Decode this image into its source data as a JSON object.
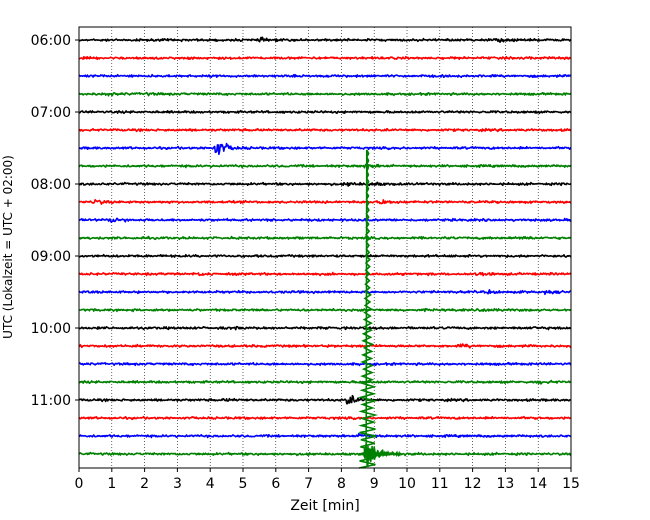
{
  "chart_data": {
    "type": "line",
    "xlabel": "Zeit  [min]",
    "ylabel": "UTC (Lokalzeit = UTC + 02:00)",
    "xlim": [
      0,
      15
    ],
    "x_ticks": [
      "0",
      "1",
      "2",
      "3",
      "4",
      "5",
      "6",
      "7",
      "8",
      "9",
      "10",
      "11",
      "12",
      "13",
      "14",
      "15"
    ],
    "y_tick_labels": [
      "06:00",
      "07:00",
      "08:00",
      "09:00",
      "10:00",
      "11:00"
    ],
    "grid": "vertical dotted",
    "trace_colors": [
      "#000000",
      "#ff0000",
      "#0000ff",
      "#008000"
    ],
    "traces": [
      {
        "start": "06:00",
        "color": "#000000",
        "events": [
          {
            "t": 5.5,
            "amp": 0.25
          },
          {
            "t": 12.8,
            "amp": 0.3
          }
        ]
      },
      {
        "start": "06:15",
        "color": "#ff0000",
        "events": []
      },
      {
        "start": "06:30",
        "color": "#0000ff",
        "events": []
      },
      {
        "start": "06:45",
        "color": "#008000",
        "events": [
          {
            "t": 0.8,
            "amp": 0.2
          },
          {
            "t": 2.0,
            "amp": 0.15
          }
        ]
      },
      {
        "start": "07:00",
        "color": "#000000",
        "events": []
      },
      {
        "start": "07:15",
        "color": "#ff0000",
        "events": []
      },
      {
        "start": "07:30",
        "color": "#0000ff",
        "events": [
          {
            "t": 4.2,
            "amp": 1.8
          }
        ]
      },
      {
        "start": "07:45",
        "color": "#008000",
        "events": [
          {
            "t": 8.75,
            "amp": 0.3
          }
        ]
      },
      {
        "start": "08:00",
        "color": "#000000",
        "events": [
          {
            "t": 8.2,
            "amp": 0.3
          },
          {
            "t": 8.9,
            "amp": 0.3
          }
        ]
      },
      {
        "start": "08:15",
        "color": "#ff0000",
        "events": [
          {
            "t": 0.5,
            "amp": 0.4
          },
          {
            "t": 9.2,
            "amp": 0.4
          }
        ]
      },
      {
        "start": "08:30",
        "color": "#0000ff",
        "events": [
          {
            "t": 1.0,
            "amp": 0.5
          }
        ]
      },
      {
        "start": "08:45",
        "color": "#008000",
        "events": [
          {
            "t": 13.5,
            "amp": 0.2
          }
        ]
      },
      {
        "start": "09:00",
        "color": "#000000",
        "events": []
      },
      {
        "start": "09:15",
        "color": "#ff0000",
        "events": [
          {
            "t": 3.7,
            "amp": 0.2
          },
          {
            "t": 12.2,
            "amp": 0.35
          }
        ]
      },
      {
        "start": "09:30",
        "color": "#0000ff",
        "events": [
          {
            "t": 12.5,
            "amp": 0.2
          },
          {
            "t": 14.2,
            "amp": 0.2
          }
        ]
      },
      {
        "start": "09:45",
        "color": "#008000",
        "events": [
          {
            "t": 12.3,
            "amp": 0.2
          }
        ]
      },
      {
        "start": "10:00",
        "color": "#000000",
        "events": [
          {
            "t": 4.7,
            "amp": 0.15
          },
          {
            "t": 13.8,
            "amp": 0.15
          }
        ]
      },
      {
        "start": "10:15",
        "color": "#ff0000",
        "events": [
          {
            "t": 11.7,
            "amp": 0.25
          }
        ]
      },
      {
        "start": "10:30",
        "color": "#0000ff",
        "events": []
      },
      {
        "start": "10:45",
        "color": "#008000",
        "events": [
          {
            "t": 14.0,
            "amp": 0.25
          }
        ]
      },
      {
        "start": "11:00",
        "color": "#000000",
        "events": [
          {
            "t": 8.2,
            "amp": 1.0
          },
          {
            "t": 4.5,
            "amp": 0.15
          }
        ]
      },
      {
        "start": "11:15",
        "color": "#ff0000",
        "events": []
      },
      {
        "start": "11:30",
        "color": "#0000ff",
        "events": [
          {
            "t": 8.6,
            "amp": 0.4
          }
        ]
      },
      {
        "start": "11:45",
        "color": "#008000",
        "events": [
          {
            "t": 8.8,
            "amp": 3.0
          }
        ]
      }
    ],
    "big_event": {
      "t": 8.8,
      "color": "#008000",
      "peak_trace": "07:45",
      "end_trace": "11:45"
    }
  }
}
